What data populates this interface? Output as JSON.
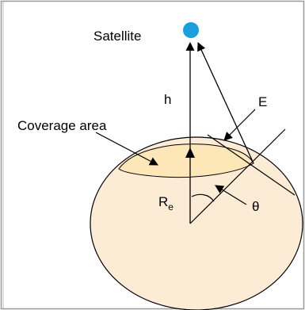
{
  "labels": {
    "satellite": "Satellite",
    "h": "h",
    "E": "E",
    "coverage_area": "Coverage area",
    "Re_main": "R",
    "Re_sub": "e",
    "theta": "θ"
  },
  "colors": {
    "earth_fill": "#fcecd6",
    "coverage_fill": "#fde6b8",
    "satellite": "#1b9fdc",
    "stroke": "#000000",
    "border": "#9a9a9a"
  }
}
